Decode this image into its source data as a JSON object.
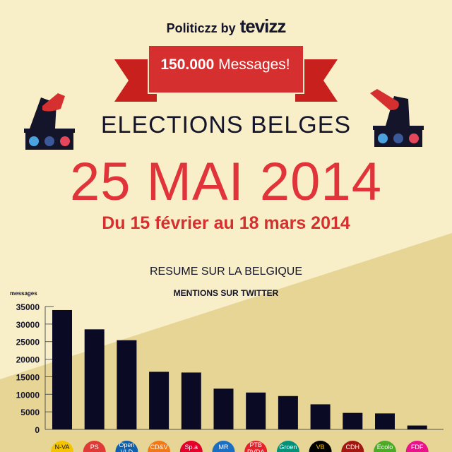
{
  "header": {
    "brand": "Politiczz by",
    "logo": "tevizz",
    "banner": "150.000 Messages!",
    "title": "ELECTIONS BELGES",
    "date": "25 MAI 2014",
    "range": "Du 15 février au 18 mars 2014",
    "summary": "RESUME SUR LA BELGIQUE"
  },
  "icons": [
    "twitter-icon",
    "facebook-icon",
    "instagram-icon",
    "ballot-box-icon",
    "hand-icon"
  ],
  "colors": {
    "bar": "#0a0a24",
    "accent": "#d5302f",
    "bg_light": "#f8efc8",
    "bg_dark": "#e6d594"
  },
  "chart_data": {
    "type": "bar",
    "title": "MENTIONS SUR TWITTER",
    "ylabel": "messages",
    "xlabel": "",
    "ylim": [
      0,
      35000
    ],
    "yticks": [
      0,
      5000,
      10000,
      15000,
      20000,
      25000,
      30000,
      35000
    ],
    "grid": false,
    "categories": [
      "N-VA",
      "PS",
      "Open VLD",
      "CD&V",
      "Sp.a",
      "MR",
      "PTB PVDA",
      "Groen",
      "VB",
      "CDH",
      "Ecolo",
      "FDF"
    ],
    "values": [
      34000,
      28500,
      25400,
      16400,
      16200,
      11600,
      10500,
      9500,
      7150,
      4700,
      4550,
      1100
    ],
    "category_colors": [
      "#f5c400",
      "#e03a36",
      "#0e5fae",
      "#f07a1a",
      "#e3002b",
      "#1a6fc4",
      "#e8202a",
      "#05907a",
      "#000000",
      "#a2170f",
      "#4caa28",
      "#e7148a"
    ],
    "label_colors": [
      "#14142b",
      "#ffffff",
      "#ffffff",
      "#ffffff",
      "#ffffff",
      "#ffffff",
      "#ffffff",
      "#ffffff",
      "#f5c400",
      "#ffffff",
      "#ffffff",
      "#ffffff"
    ]
  }
}
